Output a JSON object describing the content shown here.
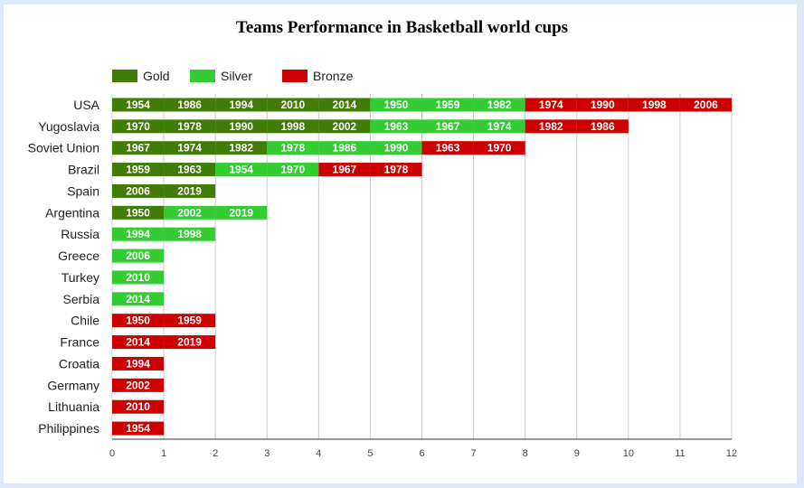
{
  "chart_data": {
    "type": "bar",
    "orientation": "horizontal",
    "stacked": true,
    "title": "Teams Performance in Basketball world cups",
    "legend": {
      "position": "top-left",
      "entries": [
        "Gold",
        "Silver",
        "Bronze"
      ]
    },
    "colors": {
      "Gold": "#417c07",
      "Silver": "#33cc33",
      "Bronze": "#cc0000"
    },
    "xlim": [
      0,
      12
    ],
    "xticks": [
      0,
      1,
      2,
      3,
      4,
      5,
      6,
      7,
      8,
      9,
      10,
      11,
      12
    ],
    "grid": true,
    "categories": [
      "USA",
      "Yugoslavia",
      "Soviet Union",
      "Brazil",
      "Spain",
      "Argentina",
      "Russia",
      "Greece",
      "Turkey",
      "Serbia",
      "Chile",
      "France",
      "Croatia",
      "Germany",
      "Lithuania",
      "Philippines"
    ],
    "series": [
      {
        "name": "Gold",
        "values": [
          5,
          5,
          3,
          2,
          2,
          1,
          0,
          0,
          0,
          0,
          0,
          0,
          0,
          0,
          0,
          0
        ]
      },
      {
        "name": "Silver",
        "values": [
          3,
          3,
          3,
          2,
          0,
          2,
          2,
          1,
          1,
          1,
          0,
          0,
          0,
          0,
          0,
          0
        ]
      },
      {
        "name": "Bronze",
        "values": [
          4,
          2,
          2,
          2,
          0,
          0,
          0,
          0,
          0,
          0,
          2,
          2,
          1,
          1,
          1,
          1
        ]
      }
    ],
    "labels": {
      "USA": {
        "Gold": [
          "1954",
          "1986",
          "1994",
          "2010",
          "2014"
        ],
        "Silver": [
          "1950",
          "1959",
          "1982"
        ],
        "Bronze": [
          "1974",
          "1990",
          "1998",
          "2006"
        ]
      },
      "Yugoslavia": {
        "Gold": [
          "1970",
          "1978",
          "1990",
          "1998",
          "2002"
        ],
        "Silver": [
          "1963",
          "1967",
          "1974"
        ],
        "Bronze": [
          "1982",
          "1986"
        ]
      },
      "Soviet Union": {
        "Gold": [
          "1967",
          "1974",
          "1982"
        ],
        "Silver": [
          "1978",
          "1986",
          "1990"
        ],
        "Bronze": [
          "1963",
          "1970"
        ]
      },
      "Brazil": {
        "Gold": [
          "1959",
          "1963"
        ],
        "Silver": [
          "1954",
          "1970"
        ],
        "Bronze": [
          "1967",
          "1978"
        ]
      },
      "Spain": {
        "Gold": [
          "2006",
          "2019"
        ],
        "Silver": [],
        "Bronze": []
      },
      "Argentina": {
        "Gold": [
          "1950"
        ],
        "Silver": [
          "2002",
          "2019"
        ],
        "Bronze": []
      },
      "Russia": {
        "Gold": [],
        "Silver": [
          "1994",
          "1998"
        ],
        "Bronze": []
      },
      "Greece": {
        "Gold": [],
        "Silver": [
          "2006"
        ],
        "Bronze": []
      },
      "Turkey": {
        "Gold": [],
        "Silver": [
          "2010"
        ],
        "Bronze": []
      },
      "Serbia": {
        "Gold": [],
        "Silver": [
          "2014"
        ],
        "Bronze": []
      },
      "Chile": {
        "Gold": [],
        "Silver": [],
        "Bronze": [
          "1950",
          "1959"
        ]
      },
      "France": {
        "Gold": [],
        "Silver": [],
        "Bronze": [
          "2014",
          "2019"
        ]
      },
      "Croatia": {
        "Gold": [],
        "Silver": [],
        "Bronze": [
          "1994"
        ]
      },
      "Germany": {
        "Gold": [],
        "Silver": [],
        "Bronze": [
          "2002"
        ]
      },
      "Lithuania": {
        "Gold": [],
        "Silver": [],
        "Bronze": [
          "2010"
        ]
      },
      "Philippines": {
        "Gold": [],
        "Silver": [],
        "Bronze": [
          "1954"
        ]
      }
    }
  }
}
